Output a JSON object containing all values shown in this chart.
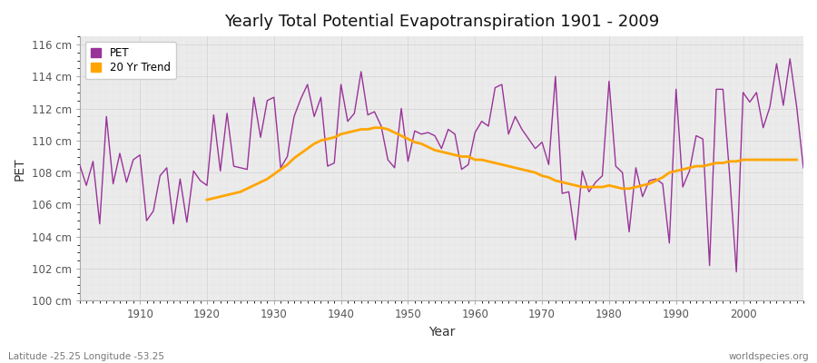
{
  "title": "Yearly Total Potential Evapotranspiration 1901 - 2009",
  "xlabel": "Year",
  "ylabel": "PET",
  "footer_left": "Latitude -25.25 Longitude -53.25",
  "footer_right": "worldspecies.org",
  "pet_color": "#993399",
  "trend_color": "#FFA500",
  "bg_color": "#EBEBEB",
  "plot_bg_color": "#F0F0F0",
  "ylim": [
    100,
    116.5
  ],
  "yticks": [
    100,
    102,
    104,
    106,
    108,
    110,
    112,
    114,
    116
  ],
  "ytick_labels": [
    "100 cm",
    "102 cm",
    "104 cm",
    "106 cm",
    "108 cm",
    "110 cm",
    "112 cm",
    "114 cm",
    "116 cm"
  ],
  "xticks": [
    1910,
    1920,
    1930,
    1940,
    1950,
    1960,
    1970,
    1980,
    1990,
    2000
  ],
  "xlim": [
    1901,
    2009
  ],
  "years": [
    1901,
    1902,
    1903,
    1904,
    1905,
    1906,
    1907,
    1908,
    1909,
    1910,
    1911,
    1912,
    1913,
    1914,
    1915,
    1916,
    1917,
    1918,
    1919,
    1920,
    1921,
    1922,
    1923,
    1924,
    1925,
    1926,
    1927,
    1928,
    1929,
    1930,
    1931,
    1932,
    1933,
    1934,
    1935,
    1936,
    1937,
    1938,
    1939,
    1940,
    1941,
    1942,
    1943,
    1944,
    1945,
    1946,
    1947,
    1948,
    1949,
    1950,
    1951,
    1952,
    1953,
    1954,
    1955,
    1956,
    1957,
    1958,
    1959,
    1960,
    1961,
    1962,
    1963,
    1964,
    1965,
    1966,
    1967,
    1968,
    1969,
    1970,
    1971,
    1972,
    1973,
    1974,
    1975,
    1976,
    1977,
    1978,
    1979,
    1980,
    1981,
    1982,
    1983,
    1984,
    1985,
    1986,
    1987,
    1988,
    1989,
    1990,
    1991,
    1992,
    1993,
    1994,
    1995,
    1996,
    1997,
    1998,
    1999,
    2000,
    2001,
    2002,
    2003,
    2004,
    2005,
    2006,
    2007,
    2008,
    2009
  ],
  "pet": [
    108.5,
    107.2,
    108.7,
    104.8,
    111.5,
    107.3,
    109.2,
    107.4,
    108.8,
    109.1,
    105.0,
    105.6,
    107.8,
    108.3,
    104.8,
    107.6,
    104.9,
    108.1,
    107.5,
    107.2,
    111.6,
    108.1,
    111.7,
    108.4,
    108.3,
    108.2,
    112.7,
    110.2,
    112.5,
    112.7,
    108.3,
    109.0,
    111.5,
    112.6,
    113.5,
    111.5,
    112.7,
    108.4,
    108.6,
    113.5,
    111.2,
    111.7,
    114.3,
    111.6,
    111.8,
    110.9,
    108.8,
    108.3,
    112.0,
    108.7,
    110.6,
    110.4,
    110.5,
    110.3,
    109.5,
    110.7,
    110.4,
    108.2,
    108.5,
    110.5,
    111.2,
    110.9,
    113.3,
    113.5,
    110.4,
    111.5,
    110.7,
    110.1,
    109.5,
    109.9,
    108.5,
    114.0,
    106.7,
    106.8,
    103.8,
    108.1,
    106.8,
    107.4,
    107.8,
    113.7,
    108.4,
    108.0,
    104.3,
    108.3,
    106.5,
    107.5,
    107.6,
    107.3,
    103.6,
    113.2,
    107.1,
    108.1,
    110.3,
    110.1,
    102.2,
    113.2,
    113.2,
    107.8,
    101.8,
    113.0,
    112.4,
    113.0,
    110.8,
    112.1,
    114.8,
    112.2,
    115.1,
    112.1,
    108.3
  ],
  "trend": [
    null,
    null,
    null,
    null,
    null,
    null,
    null,
    null,
    null,
    null,
    null,
    null,
    null,
    null,
    null,
    null,
    null,
    null,
    null,
    106.3,
    106.4,
    106.5,
    106.6,
    106.7,
    106.8,
    107.0,
    107.2,
    107.4,
    107.6,
    107.9,
    108.2,
    108.5,
    108.9,
    109.2,
    109.5,
    109.8,
    110.0,
    110.1,
    110.2,
    110.4,
    110.5,
    110.6,
    110.7,
    110.7,
    110.8,
    110.8,
    110.7,
    110.5,
    110.3,
    110.1,
    109.9,
    109.8,
    109.6,
    109.4,
    109.3,
    109.2,
    109.1,
    109.0,
    109.0,
    108.8,
    108.8,
    108.7,
    108.6,
    108.5,
    108.4,
    108.3,
    108.2,
    108.1,
    108.0,
    107.8,
    107.7,
    107.5,
    107.4,
    107.3,
    107.2,
    107.1,
    107.1,
    107.1,
    107.1,
    107.2,
    107.1,
    107.0,
    107.0,
    107.1,
    107.2,
    107.3,
    107.5,
    107.7,
    108.0,
    108.1,
    108.2,
    108.3,
    108.4,
    108.4,
    108.5,
    108.6,
    108.6,
    108.7,
    108.7,
    108.8,
    108.8,
    108.8,
    108.8,
    108.8,
    108.8,
    108.8,
    108.8,
    108.8
  ]
}
